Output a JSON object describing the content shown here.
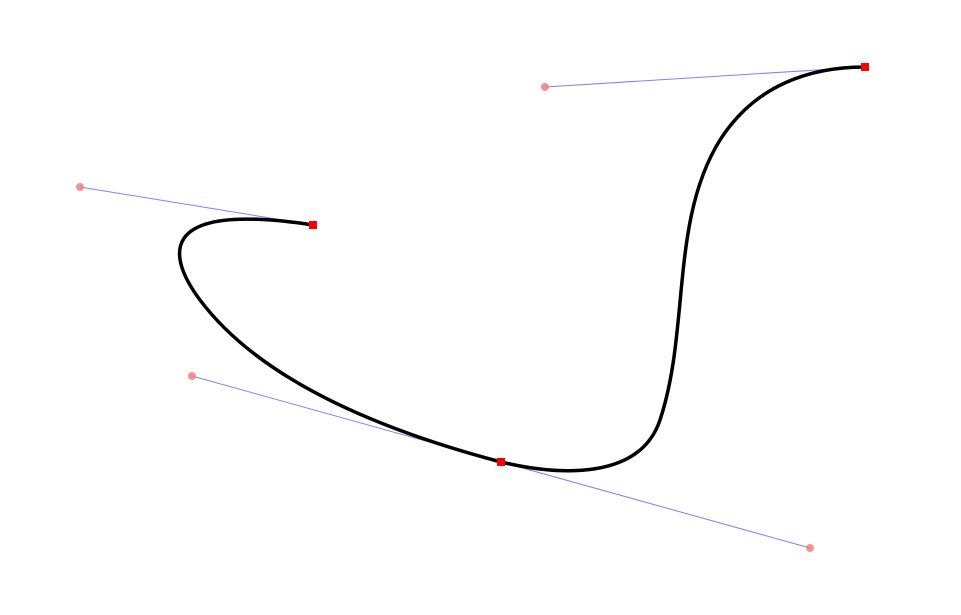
{
  "diagram": {
    "type": "bezier-path-editor",
    "colors": {
      "curve": "#000000",
      "handle_line": "#8080ff",
      "handle_point": "#f08080",
      "anchor_point": "#ff0000",
      "background": "#ffffff"
    },
    "anchor_count": 3,
    "handle_count": 4
  }
}
